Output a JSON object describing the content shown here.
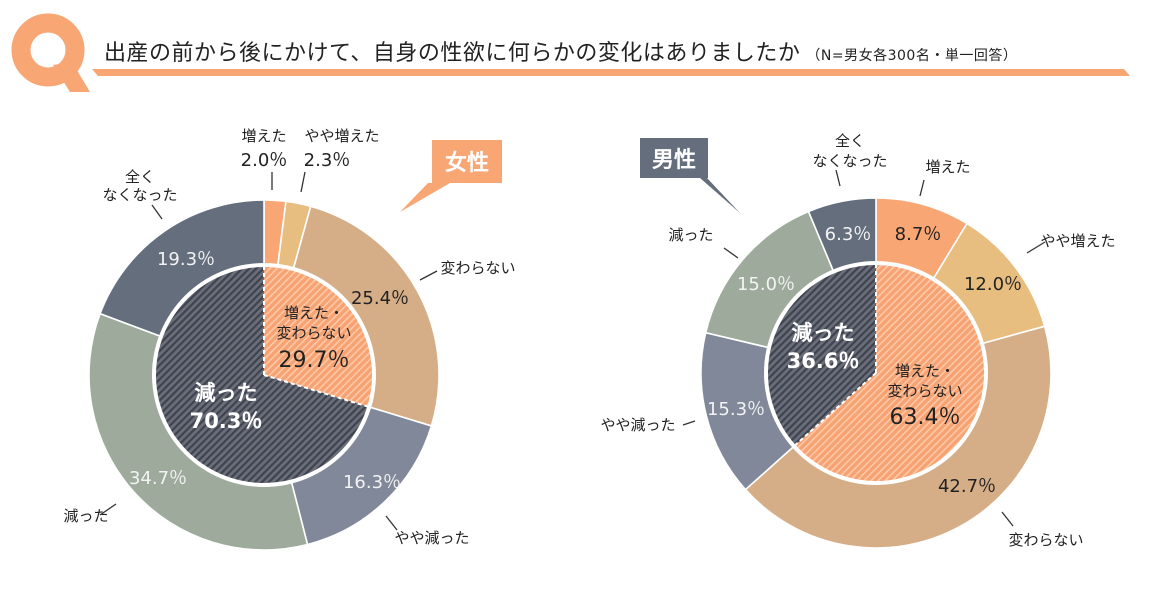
{
  "header": {
    "q_mark": "Q",
    "title": "出産の前から後にかけて、自身の性欲に何らかの変化はありましたか",
    "subtitle": "（N=男女各300名・単一回答）"
  },
  "colors": {
    "accent_orange": "#F9A675",
    "increased": "#F9A675",
    "slightly_increased": "#E8BE80",
    "unchanged": "#D5AE88",
    "slightly_decreased": "#808899",
    "decreased": "#9DAA9C",
    "completely_gone": "#656E7D",
    "inner_decreased": "#555A66",
    "inner_increased": "#F9A675",
    "male_badge": "#656E7D",
    "female_badge": "#F9A675"
  },
  "chart_data": [
    {
      "type": "pie",
      "variant": "nested-donut",
      "title": "女性",
      "badge": "女性",
      "start": "top",
      "direction": "clockwise",
      "outer": [
        {
          "name": "増えた",
          "value": 2.0,
          "label": "2.0％",
          "color_key": "increased"
        },
        {
          "name": "やや増えた",
          "value": 2.3,
          "label": "2.3％",
          "color_key": "slightly_increased"
        },
        {
          "name": "変わらない",
          "value": 25.4,
          "label": "25.4％",
          "color_key": "unchanged"
        },
        {
          "name": "やや減った",
          "value": 16.3,
          "label": "16.3％",
          "color_key": "slightly_decreased"
        },
        {
          "name": "減った",
          "value": 34.7,
          "label": "34.7％",
          "color_key": "decreased"
        },
        {
          "name": "全くなくなった",
          "name_lines": [
            "全く",
            "なくなった"
          ],
          "value": 19.3,
          "label": "19.3％",
          "color_key": "completely_gone"
        }
      ],
      "inner": [
        {
          "name": "増えた・変わらない",
          "name_lines": [
            "増えた・",
            "変わらない"
          ],
          "value": 29.7,
          "label": "29.7％",
          "color_key": "inner_increased"
        },
        {
          "name": "減った",
          "name_lines": [
            "減った"
          ],
          "value": 70.3,
          "label": "70.3％",
          "color_key": "inner_decreased"
        }
      ]
    },
    {
      "type": "pie",
      "variant": "nested-donut",
      "title": "男性",
      "badge": "男性",
      "start": "top",
      "direction": "clockwise",
      "outer": [
        {
          "name": "増えた",
          "value": 8.7,
          "label": "8.7％",
          "color_key": "increased"
        },
        {
          "name": "やや増えた",
          "value": 12.0,
          "label": "12.0％",
          "color_key": "slightly_increased"
        },
        {
          "name": "変わらない",
          "value": 42.7,
          "label": "42.7％",
          "color_key": "unchanged"
        },
        {
          "name": "やや減った",
          "value": 15.3,
          "label": "15.3％",
          "color_key": "slightly_decreased"
        },
        {
          "name": "減った",
          "value": 15.0,
          "label": "15.0％",
          "color_key": "decreased"
        },
        {
          "name": "全くなくなった",
          "name_lines": [
            "全く",
            "なくなった"
          ],
          "value": 6.3,
          "label": "6.3％",
          "color_key": "completely_gone"
        }
      ],
      "inner": [
        {
          "name": "増えた・変わらない",
          "name_lines": [
            "増えた・",
            "変わらない"
          ],
          "value": 63.4,
          "label": "63.4％",
          "color_key": "inner_increased"
        },
        {
          "name": "減った",
          "name_lines": [
            "減った"
          ],
          "value": 36.6,
          "label": "36.6％",
          "color_key": "inner_decreased"
        }
      ]
    }
  ]
}
